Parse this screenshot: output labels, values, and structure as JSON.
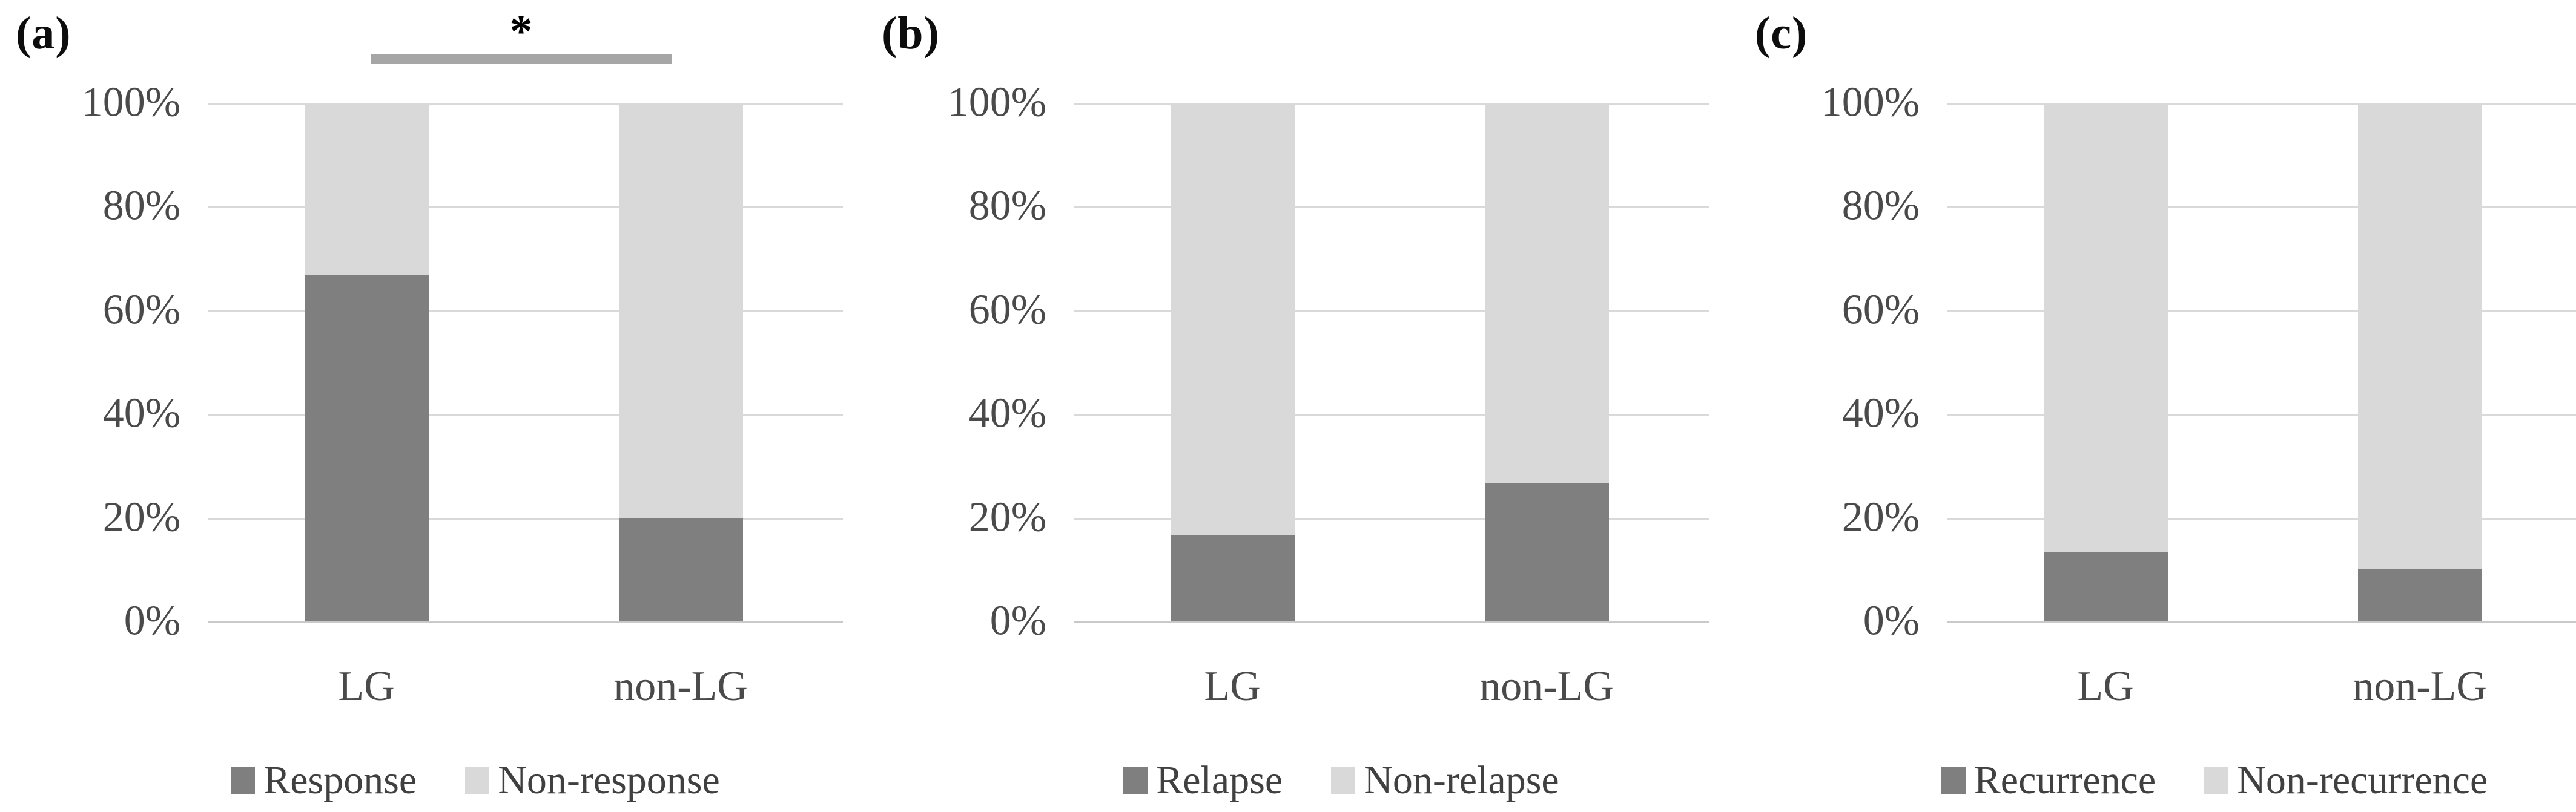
{
  "y_axis": {
    "ticks": [
      "0%",
      "20%",
      "40%",
      "60%",
      "80%",
      "100%"
    ],
    "lim": [
      0,
      100
    ]
  },
  "colors": {
    "dark_series": "#7f7f7f",
    "light_series": "#d9d9d9",
    "gridline": "#d9d9d9",
    "significance_line": "#a6a6a6",
    "tick_text": "#4a4a4a"
  },
  "chart_data": [
    {
      "type": "bar",
      "stacking": "percent",
      "panel_label": "(a)",
      "categories": [
        "LG",
        "non-LG"
      ],
      "series": [
        {
          "name": "Response",
          "color": "#7f7f7f",
          "values": [
            66.7,
            20.0
          ]
        },
        {
          "name": "Non-response",
          "color": "#d9d9d9",
          "values": [
            33.3,
            80.0
          ]
        }
      ],
      "yticks": [
        "0%",
        "20%",
        "40%",
        "60%",
        "80%",
        "100%"
      ],
      "ylim": [
        0,
        100
      ],
      "grid": true,
      "legend_position": "bottom",
      "significance": {
        "label": "*",
        "between": [
          "LG",
          "non-LG"
        ]
      }
    },
    {
      "type": "bar",
      "stacking": "percent",
      "panel_label": "(b)",
      "categories": [
        "LG",
        "non-LG"
      ],
      "series": [
        {
          "name": "Relapse",
          "color": "#7f7f7f",
          "values": [
            16.7,
            26.7
          ]
        },
        {
          "name": "Non-relapse",
          "color": "#d9d9d9",
          "values": [
            83.3,
            73.3
          ]
        }
      ],
      "yticks": [
        "0%",
        "20%",
        "40%",
        "60%",
        "80%",
        "100%"
      ],
      "ylim": [
        0,
        100
      ],
      "grid": true,
      "legend_position": "bottom"
    },
    {
      "type": "bar",
      "stacking": "percent",
      "panel_label": "(c)",
      "categories": [
        "LG",
        "non-LG"
      ],
      "series": [
        {
          "name": "Recurrence",
          "color": "#7f7f7f",
          "values": [
            13.3,
            10.0
          ]
        },
        {
          "name": "Non-recurrence",
          "color": "#d9d9d9",
          "values": [
            86.7,
            90.0
          ]
        }
      ],
      "yticks": [
        "0%",
        "20%",
        "40%",
        "60%",
        "80%",
        "100%"
      ],
      "ylim": [
        0,
        100
      ],
      "grid": true,
      "legend_position": "bottom"
    }
  ]
}
